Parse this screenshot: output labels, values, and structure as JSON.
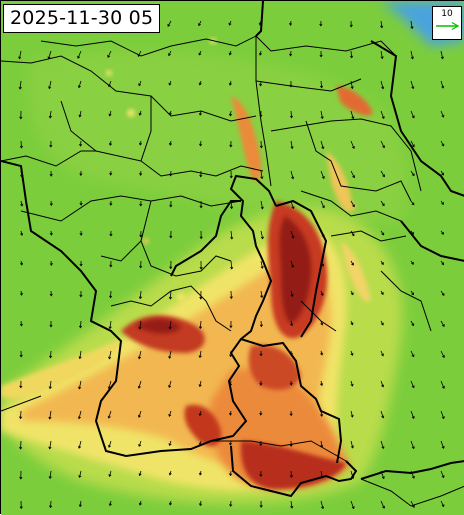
{
  "timestamp": "2025-11-30 05",
  "legend": {
    "reference_wind_speed": "10",
    "arrow_color": "#00c000"
  },
  "colors": {
    "background_green": "#7ccd3c",
    "light_green": "#a4d848",
    "yellow_green": "#cfe257",
    "yellow": "#f2e96a",
    "light_orange": "#f8c45a",
    "orange": "#ee913c",
    "dark_orange": "#d8552a",
    "red": "#b3281c",
    "dark_red": "#8a1712",
    "sea_blue": "#4aa3df",
    "border": "#000000",
    "arrow": "#000000"
  },
  "icons": [
    "wind-arrow-icon",
    "legend-arrow-icon"
  ]
}
